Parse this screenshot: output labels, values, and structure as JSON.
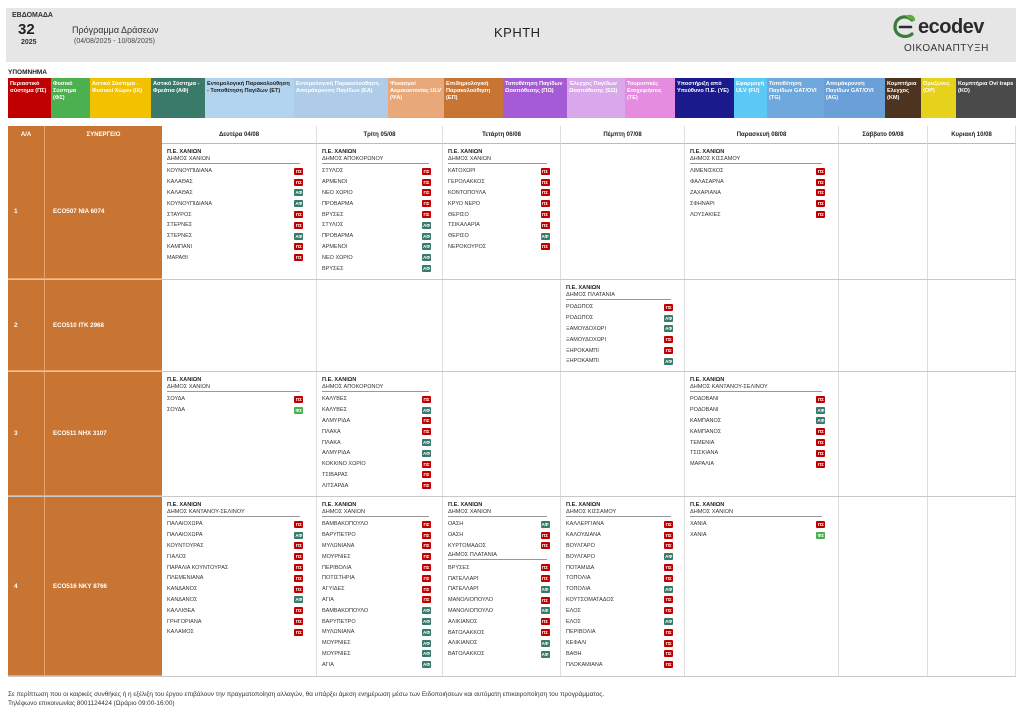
{
  "header": {
    "week_label": "ΕΒΔΟΜΑΔΑ",
    "week_number": "32",
    "year": "2025",
    "program_title": "Πρόγραμμα Δράσεων",
    "date_range": "(04/08/2025 - 10/08/2025)",
    "region": "ΚΡΗΤΗ",
    "logo_word": "ecodev",
    "logo_sub": "ΟΙΚΟΑΝΑΠΤΥΞΗ"
  },
  "legend": {
    "title": "ΥΠΟΜΝΗΜΑ",
    "items": [
      {
        "label": "Περιαστικό σύστημα (ΠΣ)",
        "bg": "#c00000",
        "fg": "#ffffff",
        "w": 43
      },
      {
        "label": "Φυσικό Σύστημα (ΦΣ)",
        "bg": "#4caf50",
        "fg": "#ffffff",
        "w": 39
      },
      {
        "label": "Αστικό Σύστημα - Φυσικοί Χώροι (ΙΧ)",
        "bg": "#f2c200",
        "fg": "#ffffff",
        "w": 61
      },
      {
        "label": "Αστικό Σύστημα - Φρεάτια (ΑΦ)",
        "bg": "#3a7a6a",
        "fg": "#ffffff",
        "w": 54
      },
      {
        "label": "Εντομολογική Παρακολούθηση - Τοποθέτηση Παγίδων (ΕΤ)",
        "bg": "#b3d4ef",
        "fg": "#222222",
        "w": 89
      },
      {
        "label": "Εντομολογική Παρακολούθηση - Απομάκρυνση Παγίδων (ΕΑ)",
        "bg": "#aecbe8",
        "fg": "#ffffff",
        "w": 94
      },
      {
        "label": "Ψεκασμοί Ακμαιοκτονίας ULV (ΨΑ)",
        "bg": "#e8a87a",
        "fg": "#ffffff",
        "w": 56
      },
      {
        "label": "Επιδημιολογική Παρακολούθηση (ΕΠ)",
        "bg": "#c87533",
        "fg": "#ffffff",
        "w": 59
      },
      {
        "label": "Τοποθέτηση Παγίδων Ωοαπόθεσης (ΠΩ)",
        "bg": "#a65bd6",
        "fg": "#ffffff",
        "w": 64
      },
      {
        "label": "Έλεγχος Παγίδων Ωοαπόθεσης (ΕΩ)",
        "bg": "#d9a8ea",
        "fg": "#ffffff",
        "w": 58
      },
      {
        "label": "Τουριστικές Επιχειρήσεις (ΤΕ)",
        "bg": "#e58be0",
        "fg": "#ffffff",
        "w": 50
      },
      {
        "label": "Υποστήριξη από Υπεύθυνο Π.Ε. (ΥΕ)",
        "bg": "#1a1a8c",
        "fg": "#ffffff",
        "w": 59
      },
      {
        "label": "Εφαρμογή ULV (FU)",
        "bg": "#5bc8f5",
        "fg": "#ffffff",
        "w": 33
      },
      {
        "label": "Τοποθέτηση Παγίδων GAT/OVI (TG)",
        "bg": "#6fa8dc",
        "fg": "#ffffff",
        "w": 57
      },
      {
        "label": "Απομάκρυνση Παγίδων GAT/OVI (AG)",
        "bg": "#6a9fd8",
        "fg": "#ffffff",
        "w": 61
      },
      {
        "label": "Κομπτήρια Ελεγχος (ΚΜ)",
        "bg": "#4d3420",
        "fg": "#ffffff",
        "w": 36
      },
      {
        "label": "Ορυζώνες (ΟΡ)",
        "bg": "#e6d21a",
        "fg": "#ffffff",
        "w": 35
      },
      {
        "label": "Κομπτήρια Ovi traps (ΚΟ)",
        "bg": "#4a4a4a",
        "fg": "#ffffff",
        "w": 60
      }
    ]
  },
  "grid": {
    "col_aa": "Α/Α",
    "col_synergeio": "ΣΥΝΕΡΓΕΙΟ",
    "days": [
      {
        "label": "Δευτέρα 04/08",
        "w": 155
      },
      {
        "label": "Τρίτη 05/08",
        "w": 126
      },
      {
        "label": "Τετάρτη 06/08",
        "w": 118
      },
      {
        "label": "Πέμπτη 07/08",
        "w": 124
      },
      {
        "label": "Παρασκευή 08/08",
        "w": 154
      },
      {
        "label": "Σάββατο 09/08",
        "w": 89
      },
      {
        "label": "Κυριακή 10/08",
        "w": 88
      }
    ],
    "badge_colors": {
      "ΠΣ": "#c00000",
      "ΑΦ": "#3a7a6a",
      "ΦΣ": "#4caf50"
    },
    "rows": [
      {
        "aa": "1",
        "team": "ECO507  NIA 6074",
        "h": 136,
        "cells": [
          [
            {
              "pe": "Π.Ε. ΧΑΝΙΩΝ",
              "dimos": "ΔΗΜΟΣ ΧΑΝΙΩΝ",
              "items": [
                {
                  "n": "ΚΟΥΝΟΥΠΙΔΙΑΝΑ",
                  "b": "ΠΣ"
                },
                {
                  "n": "ΚΑΛΑΘΑΣ",
                  "b": "ΠΣ"
                },
                {
                  "n": "ΚΑΛΑΘΑΣ",
                  "b": "ΑΦ"
                },
                {
                  "n": "ΚΟΥΝΟΥΠΙΔΙΑΝΑ",
                  "b": "ΑΦ"
                },
                {
                  "n": "ΣΤΑΥΡΟΣ",
                  "b": "ΠΣ"
                },
                {
                  "n": "ΣΤΕΡΝΕΣ",
                  "b": "ΠΣ"
                },
                {
                  "n": "ΣΤΕΡΝΕΣ",
                  "b": "ΑΦ"
                },
                {
                  "n": "ΚΑΜΠΑΝΙ",
                  "b": "ΠΣ"
                },
                {
                  "n": "ΜΑΡΑΘΙ",
                  "b": "ΠΣ"
                }
              ]
            }
          ],
          [
            {
              "pe": "Π.Ε. ΧΑΝΙΩΝ",
              "dimos": "ΔΗΜΟΣ ΑΠΟΚΟΡΩΝΟΥ",
              "items": [
                {
                  "n": "ΣΤΥΛΟΣ",
                  "b": "ΠΣ"
                },
                {
                  "n": "ΑΡΜΕΝΟΙ",
                  "b": "ΠΣ"
                },
                {
                  "n": "ΝΕΟ ΧΩΡΙΟ",
                  "b": "ΠΣ"
                },
                {
                  "n": "ΠΡΟΒΑΡΜΑ",
                  "b": "ΠΣ"
                },
                {
                  "n": "ΒΡΥΣΕΣ",
                  "b": "ΠΣ"
                },
                {
                  "n": "ΣΤΥΛΟΣ",
                  "b": "ΑΦ"
                },
                {
                  "n": "ΠΡΟΒΑΡΜΑ",
                  "b": "ΑΦ"
                },
                {
                  "n": "ΑΡΜΕΝΟΙ",
                  "b": "ΑΦ"
                },
                {
                  "n": "ΝΕΟ ΧΩΡΙΟ",
                  "b": "ΑΦ"
                },
                {
                  "n": "ΒΡΥΣΕΣ",
                  "b": "ΑΦ"
                }
              ]
            }
          ],
          [
            {
              "pe": "Π.Ε. ΧΑΝΙΩΝ",
              "dimos": "ΔΗΜΟΣ ΧΑΝΙΩΝ",
              "items": [
                {
                  "n": "ΚΑΤΟΧΩΡΙ",
                  "b": "ΠΣ"
                },
                {
                  "n": "ΓΕΡΟΛΑΚΚΟΣ",
                  "b": "ΠΣ"
                },
                {
                  "n": "ΚΟΝΤΟΠΟΥΛΑ",
                  "b": "ΠΣ"
                },
                {
                  "n": "ΚΡΥΟ ΝΕΡΟ",
                  "b": "ΠΣ"
                },
                {
                  "n": "ΘΕΡΙΣΟ",
                  "b": "ΠΣ"
                },
                {
                  "n": "ΤΣΙΚΑΛΑΡΙΑ",
                  "b": "ΠΣ"
                },
                {
                  "n": "ΘΕΡΙΣΟ",
                  "b": "ΑΦ"
                },
                {
                  "n": "ΝΕΡΟΚΟΥΡΟΣ",
                  "b": "ΠΣ"
                }
              ]
            }
          ],
          [],
          [
            {
              "pe": "Π.Ε. ΧΑΝΙΩΝ",
              "dimos": "ΔΗΜΟΣ ΚΙΣΣΑΜΟΥ",
              "items": [
                {
                  "n": "ΛΙΜΕΝΙΣΚΟΣ",
                  "b": "ΠΣ"
                },
                {
                  "n": "ΦΑΛΑΣΑΡΝΑ",
                  "b": "ΠΣ"
                },
                {
                  "n": "ΖΑΧΑΡΙΑΝΑ",
                  "b": "ΠΣ"
                },
                {
                  "n": "ΣΦΗΝΑΡΙ",
                  "b": "ΠΣ"
                },
                {
                  "n": "ΛΟΥΣΑΚΙΕΣ",
                  "b": "ΠΣ"
                }
              ]
            }
          ],
          [],
          []
        ]
      },
      {
        "aa": "2",
        "team": "ECO510  ΙΤΚ 2968",
        "h": 92,
        "cells": [
          [],
          [],
          [],
          [
            {
              "pe": "Π.Ε. ΧΑΝΙΩΝ",
              "dimos": "ΔΗΜΟΣ ΠΛΑΤΑΝΙΑ",
              "items": [
                {
                  "n": "ΡΟΔΩΠΟΣ",
                  "b": "ΠΣ"
                },
                {
                  "n": "ΡΟΔΩΠΟΣ",
                  "b": "ΑΦ"
                },
                {
                  "n": "ΞΑΜΟΥΔΟΧΩΡΙ",
                  "b": "ΑΦ"
                },
                {
                  "n": "ΞΑΜΟΥΔΟΧΩΡΙ",
                  "b": "ΠΣ"
                },
                {
                  "n": "ΞΗΡΟΚΑΜΠΙ",
                  "b": "ΠΣ"
                },
                {
                  "n": "ΞΗΡΟΚΑΜΠΙ",
                  "b": "ΑΦ"
                }
              ]
            }
          ],
          [],
          [],
          []
        ]
      },
      {
        "aa": "3",
        "team": "ECO511  ΝΗΧ 3107",
        "h": 125,
        "cells": [
          [
            {
              "pe": "Π.Ε. ΧΑΝΙΩΝ",
              "dimos": "ΔΗΜΟΣ ΧΑΝΙΩΝ",
              "items": [
                {
                  "n": "ΣΟΥΔΑ",
                  "b": "ΠΣ"
                },
                {
                  "n": "ΣΟΥΔΑ",
                  "b": "ΦΣ"
                }
              ]
            }
          ],
          [
            {
              "pe": "Π.Ε. ΧΑΝΙΩΝ",
              "dimos": "ΔΗΜΟΣ ΑΠΟΚΟΡΩΝΟΥ",
              "items": [
                {
                  "n": "ΚΑΛΥΒΕΣ",
                  "b": "ΠΣ"
                },
                {
                  "n": "ΚΑΛΥΒΕΣ",
                  "b": "ΑΦ"
                },
                {
                  "n": "ΑΛΜΥΡΙΔΑ",
                  "b": "ΠΣ"
                },
                {
                  "n": "ΠΛΑΚΑ",
                  "b": "ΠΣ"
                },
                {
                  "n": "ΠΛΑΚΑ",
                  "b": "ΑΦ"
                },
                {
                  "n": "ΑΛΜΥΡΙΔΑ",
                  "b": "ΑΦ"
                },
                {
                  "n": "ΚΟΚΚΙΝΟ ΧΩΡΙΟ",
                  "b": "ΠΣ"
                },
                {
                  "n": "ΤΣΙΒΑΡΑΣ",
                  "b": "ΠΣ"
                },
                {
                  "n": "ΛΙΤΣΑΡΔΑ",
                  "b": "ΠΣ"
                }
              ]
            }
          ],
          [],
          [],
          [
            {
              "pe": "Π.Ε. ΧΑΝΙΩΝ",
              "dimos": "ΔΗΜΟΣ ΚΑΝΤΑΝΟΥ-ΣΕΛΙΝΟΥ",
              "items": [
                {
                  "n": "ΡΟΔΟΒΑΝΙ",
                  "b": "ΠΣ"
                },
                {
                  "n": "ΡΟΔΟΒΑΝΙ",
                  "b": "ΑΦ"
                },
                {
                  "n": "ΚΑΜΠΑΝΟΣ",
                  "b": "ΑΦ"
                },
                {
                  "n": "ΚΑΜΠΑΝΟΣ",
                  "b": "ΠΣ"
                },
                {
                  "n": "ΤΕΜΕΝΙΑ",
                  "b": "ΠΣ"
                },
                {
                  "n": "ΤΣΙΣΚΙΑΝΑ",
                  "b": "ΠΣ"
                },
                {
                  "n": "ΜΑΡΑΛΙΑ",
                  "b": "ΠΣ"
                }
              ]
            }
          ],
          [],
          []
        ]
      },
      {
        "aa": "4",
        "team": "ECO516  ΝΚΥ 8766",
        "h": 180,
        "cells": [
          [
            {
              "pe": "Π.Ε. ΧΑΝΙΩΝ",
              "dimos": "ΔΗΜΟΣ ΚΑΝΤΑΝΟΥ-ΣΕΛΙΝΟΥ",
              "items": [
                {
                  "n": "ΠΑΛΑΙΟΧΩΡΑ",
                  "b": "ΠΣ"
                },
                {
                  "n": "ΠΑΛΑΙΟΧΩΡΑ",
                  "b": "ΑΦ"
                },
                {
                  "n": "ΚΟΥΝΤΟΥΡΑΣ",
                  "b": "ΠΣ"
                },
                {
                  "n": "ΓΙΑΛΟΣ",
                  "b": "ΠΣ"
                },
                {
                  "n": "ΠΑΡΑΛΙΑ ΚΟΥΝΤΟΥΡΑΣ",
                  "b": "ΠΣ"
                },
                {
                  "n": "ΠΛΕΜΕΝΙΑΝΑ",
                  "b": "ΠΣ"
                },
                {
                  "n": "ΚΑΝΔΑΝΟΣ",
                  "b": "ΠΣ"
                },
                {
                  "n": "ΚΑΝΔΑΝΟΣ",
                  "b": "ΑΦ"
                },
                {
                  "n": "ΚΑΛΛΙΘΕΑ",
                  "b": "ΠΣ"
                },
                {
                  "n": "ΓΡΗΓΟΡΙΑΝΑ",
                  "b": "ΠΣ"
                },
                {
                  "n": "ΚΑΛΑΜΟΣ",
                  "b": "ΠΣ"
                }
              ]
            }
          ],
          [
            {
              "pe": "Π.Ε. ΧΑΝΙΩΝ",
              "dimos": "ΔΗΜΟΣ ΧΑΝΙΩΝ",
              "items": [
                {
                  "n": "ΒΑΜΒΑΚΟΠΟΥΛΟ",
                  "b": "ΠΣ"
                },
                {
                  "n": "ΒΑΡΥΠΕΤΡΟ",
                  "b": "ΠΣ"
                },
                {
                  "n": "ΜΥΛΩΝΙΑΝΑ",
                  "b": "ΠΣ"
                },
                {
                  "n": "ΜΟΥΡΝΙΕΣ",
                  "b": "ΠΣ"
                },
                {
                  "n": "ΠΕΡΙΒΟΛΙΑ",
                  "b": "ΠΣ"
                },
                {
                  "n": "ΠΟΤΙΣΤΗΡΙΑ",
                  "b": "ΠΣ"
                },
                {
                  "n": "ΑΓΥΙΔΕΣ",
                  "b": "ΠΣ"
                },
                {
                  "n": "ΑΓΙΑ",
                  "b": "ΠΣ"
                },
                {
                  "n": "ΒΑΜΒΑΚΟΠΟΥΛΟ",
                  "b": "ΑΦ"
                },
                {
                  "n": "ΒΑΡΥΠΕΤΡΟ",
                  "b": "ΑΦ"
                },
                {
                  "n": "ΜΥΛΩΝΙΑΝΑ",
                  "b": "ΑΦ"
                },
                {
                  "n": "ΜΟΥΡΝΙΕΣ",
                  "b": "ΑΦ"
                },
                {
                  "n": "ΜΟΥΡΝΙΕΣ",
                  "b": "ΑΦ"
                },
                {
                  "n": "ΑΓΙΑ",
                  "b": "ΑΦ"
                }
              ]
            }
          ],
          [
            {
              "pe": "Π.Ε. ΧΑΝΙΩΝ",
              "dimos": "ΔΗΜΟΣ ΧΑΝΙΩΝ",
              "items": [
                {
                  "n": "ΟΑΣΗ",
                  "b": "ΑΦ"
                },
                {
                  "n": "ΟΑΣΗ",
                  "b": "ΠΣ"
                },
                {
                  "n": "ΚΥΡΤΟΜΑΔΟΣ",
                  "b": "ΠΣ"
                }
              ],
              "sub": {
                "dimos": "ΔΗΜΟΣ ΠΛΑΤΑΝΙΑ",
                "items": [
                  {
                    "n": "ΒΡΥΣΕΣ",
                    "b": "ΠΣ"
                  },
                  {
                    "n": "ΠΑΤΕΛΛΑΡΙ",
                    "b": "ΠΣ"
                  },
                  {
                    "n": "ΠΑΤΕΛΛΑΡΙ",
                    "b": "ΑΦ"
                  },
                  {
                    "n": "ΜΑΝΟΛΙΟΠΟΥΛΟ",
                    "b": "ΠΣ"
                  },
                  {
                    "n": "ΜΑΝΟΛΙΟΠΟΥΛΟ",
                    "b": "ΑΦ"
                  },
                  {
                    "n": "ΑΛΙΚΙΑΝΟΣ",
                    "b": "ΠΣ"
                  },
                  {
                    "n": "ΒΑΤΟΛΑΚΚΟΣ",
                    "b": "ΠΣ"
                  },
                  {
                    "n": "ΑΛΙΚΙΑΝΟΣ",
                    "b": "ΑΦ"
                  },
                  {
                    "n": "ΒΑΤΟΛΑΚΚΟΣ",
                    "b": "ΑΦ"
                  }
                ]
              }
            }
          ],
          [
            {
              "pe": "Π.Ε. ΧΑΝΙΩΝ",
              "dimos": "ΔΗΜΟΣ ΚΙΣΣΑΜΟΥ",
              "items": [
                {
                  "n": "ΚΑΛΛΕΡΓΙΑΝΑ",
                  "b": "ΠΣ"
                },
                {
                  "n": "ΚΑΛΟΥΔΙΑΝΑ",
                  "b": "ΠΣ"
                },
                {
                  "n": "ΒΟΥΛΓΑΡΟ",
                  "b": "ΠΣ"
                },
                {
                  "n": "ΒΟΥΛΓΑΡΟ",
                  "b": "ΑΦ"
                },
                {
                  "n": "ΠΟΤΑΜΙΔΑ",
                  "b": "ΠΣ"
                },
                {
                  "n": "ΤΟΠΟΛΙΑ",
                  "b": "ΠΣ"
                },
                {
                  "n": "ΤΟΠΟΛΙΑ",
                  "b": "ΑΦ"
                },
                {
                  "n": "ΚΟΥΤΣΟΜΑΤΑΔΟΣ",
                  "b": "ΠΣ"
                },
                {
                  "n": "ΕΛΟΣ",
                  "b": "ΠΣ"
                },
                {
                  "n": "ΕΛΟΣ",
                  "b": "ΑΦ"
                },
                {
                  "n": "ΠΕΡΙΒΟΛΙΑ",
                  "b": "ΠΣ"
                },
                {
                  "n": "ΚΕΦΑΛΙ",
                  "b": "ΠΣ"
                },
                {
                  "n": "ΒΑΘΗ",
                  "b": "ΠΣ"
                },
                {
                  "n": "ΠΛΟΚΑΜΙΑΝΑ",
                  "b": "ΠΣ"
                }
              ]
            }
          ],
          [
            {
              "pe": "Π.Ε. ΧΑΝΙΩΝ",
              "dimos": "ΔΗΜΟΣ ΧΑΝΙΩΝ",
              "items": [
                {
                  "n": "ΧΑΝΙΑ",
                  "b": "ΠΣ"
                },
                {
                  "n": "ΧΑΝΙΑ",
                  "b": "ΦΣ"
                }
              ]
            }
          ],
          [],
          []
        ]
      }
    ]
  },
  "footer": {
    "line1": "Σε περίπτωση που οι καιρικές συνθήκες ή η εξέλιξη του έργου επιβάλουν την πραγματοποίηση αλλαγών, θα υπάρξει άμεση ενημέρωση μέσω των Ειδοποιήσεων και αυτόματη επικαιροποίηση του προγράμματος.",
    "line2": "Τηλέφωνο επικοινωνίας 8001124424 (Ωράριο 09:00-16:00)"
  }
}
